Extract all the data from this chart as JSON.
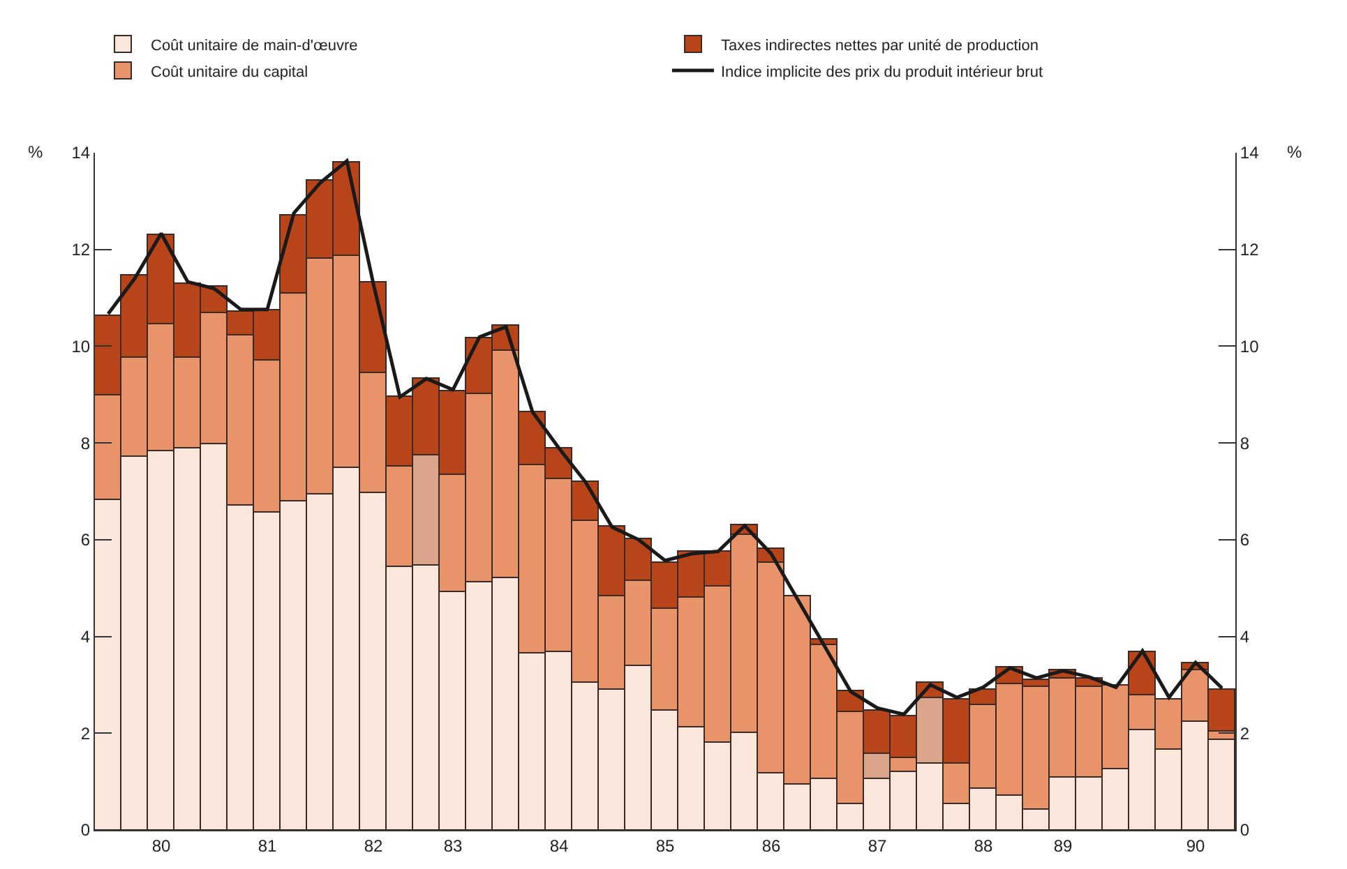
{
  "chart_data": {
    "type": "bar",
    "stacked": true,
    "ylabel": "%",
    "y2label": "%",
    "categories": [
      null,
      null,
      "80",
      null,
      null,
      null,
      "81",
      null,
      null,
      null,
      "82",
      null,
      null,
      "83",
      null,
      null,
      null,
      "84",
      null,
      null,
      null,
      "85",
      null,
      null,
      null,
      "86",
      null,
      null,
      null,
      "87",
      null,
      null,
      null,
      "88",
      null,
      null,
      "89",
      null,
      null,
      null,
      null,
      "90",
      null
    ],
    "ylim": [
      0,
      14
    ],
    "yticks": [
      0,
      2,
      4,
      6,
      8,
      10,
      12,
      14
    ],
    "y2lim": [
      0,
      14
    ],
    "y2ticks": [
      0,
      2,
      4,
      6,
      8,
      10,
      12,
      14
    ],
    "legend": "top",
    "series": [
      {
        "name": "Coût unitaire de main-d'œuvre",
        "color": "#fbe6dc",
        "values": [
          6.81,
          7.71,
          7.84,
          7.89,
          7.97,
          6.7,
          6.55,
          6.79,
          6.93,
          7.48,
          6.95,
          5.43,
          5.46,
          4.93,
          5.12,
          5.2,
          3.64,
          3.69,
          3.05,
          2.9,
          3.38,
          2.48,
          2.12,
          1.79,
          2.0,
          1.16,
          0.95,
          1.05,
          0.52,
          1.05,
          1.21,
          1.36,
          0.52,
          0.86,
          0.71,
          0.41,
          1.07,
          1.07,
          1.26,
          2.05,
          1.65,
          2.24,
          1.86
        ]
      },
      {
        "name": "Coût unitaire du capital",
        "color": "#e9936a",
        "colors": [
          "#e9936a",
          "#e9936a",
          "#e9936a",
          "#e9936a",
          "#e9936a",
          "#e9936a",
          "#e9936a",
          "#e9936a",
          "#e9936a",
          "#e9936a",
          "#e9936a",
          "#e9936a",
          "#dba58b",
          "#e9936a",
          "#e9936a",
          "#e9936a",
          "#e9936a",
          "#e9936a",
          "#e9936a",
          "#e9936a",
          "#e9936a",
          "#e9936a",
          "#e9936a",
          "#e9936a",
          "#e9936a",
          "#e9936a",
          "#e9936a",
          "#e9936a",
          "#e9936a",
          "#dba58b",
          "#e9936a",
          "#dba58b",
          "#e9936a",
          "#e9936a",
          "#e9936a",
          "#e9936a",
          "#e9936a",
          "#e9936a",
          "#e9936a",
          "#e9936a",
          "#e9936a",
          "#e9936a",
          "#e9936a"
        ],
        "values": [
          2.16,
          2.05,
          2.62,
          1.87,
          2.7,
          3.52,
          3.16,
          4.31,
          4.88,
          4.38,
          2.48,
          2.09,
          2.28,
          2.4,
          3.88,
          4.7,
          3.91,
          3.55,
          3.35,
          1.94,
          1.78,
          2.09,
          2.69,
          3.24,
          4.1,
          4.36,
          3.88,
          2.76,
          1.91,
          0.52,
          0.27,
          1.38,
          0.84,
          1.71,
          2.29,
          2.54,
          2.07,
          1.88,
          1.72,
          0.73,
          1.06,
          1.05,
          0.17
        ]
      },
      {
        "name": "Taxes indirectes nettes par unité de production",
        "color": "#b8441a",
        "values": [
          1.66,
          1.69,
          1.83,
          1.53,
          0.55,
          0.49,
          1.03,
          1.61,
          1.6,
          1.95,
          1.88,
          1.43,
          1.59,
          1.74,
          1.17,
          0.53,
          1.09,
          0.65,
          0.79,
          1.42,
          0.84,
          0.95,
          0.93,
          0.71,
          0.21,
          0.29,
          null,
          0.14,
          0.45,
          0.91,
          0.88,
          0.29,
          1.35,
          0.33,
          0.36,
          0.15,
          0.15,
          0.19,
          null,
          0.89,
          null,
          0.17,
          0.87
        ]
      },
      {
        "name": "Indice implicite des prix du produit intérieur brut",
        "type": "line",
        "color": "#1a1a1a",
        "marker": "none",
        "line_style": "solid",
        "values": [
          10.67,
          11.4,
          12.33,
          11.33,
          11.19,
          10.76,
          10.76,
          12.75,
          13.38,
          13.83,
          11.29,
          8.95,
          9.33,
          9.1,
          10.19,
          10.4,
          8.64,
          7.89,
          7.19,
          6.26,
          6.0,
          5.57,
          5.71,
          5.76,
          6.29,
          5.71,
          4.76,
          3.81,
          2.86,
          2.52,
          2.39,
          3.0,
          2.74,
          2.95,
          3.35,
          3.14,
          3.29,
          3.16,
          2.95,
          3.7,
          2.74,
          3.46,
          2.93
        ]
      }
    ]
  }
}
